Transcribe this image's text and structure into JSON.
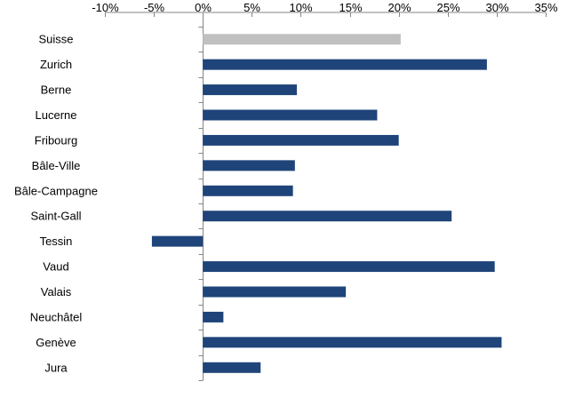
{
  "chart_data": {
    "type": "bar",
    "orientation": "horizontal",
    "categories": [
      "Suisse",
      "Zurich",
      "Berne",
      "Lucerne",
      "Fribourg",
      "Bâle-Ville",
      "Bâle-Campagne",
      "Saint-Gall",
      "Tessin",
      "Vaud",
      "Valais",
      "Neuchâtel",
      "Genève",
      "Jura"
    ],
    "values": [
      20.2,
      29.0,
      9.6,
      17.8,
      20.0,
      9.4,
      9.2,
      25.4,
      -5.2,
      29.8,
      14.6,
      2.1,
      30.5,
      5.9
    ],
    "value_unit": "%",
    "xlim": [
      -10,
      35
    ],
    "xticks": [
      -10,
      -5,
      0,
      5,
      10,
      15,
      20,
      25,
      30,
      35
    ],
    "xtick_labels": [
      "-10%",
      "-5%",
      "0%",
      "5%",
      "10%",
      "15%",
      "20%",
      "25%",
      "30%",
      "35%"
    ],
    "x_axis_position": "top",
    "grid": false,
    "legend": "none",
    "colors": {
      "bar": "#1f447a",
      "highlight_bar": "#c0c0c0",
      "axis": "#868686"
    },
    "highlight_category": "Suisse"
  }
}
